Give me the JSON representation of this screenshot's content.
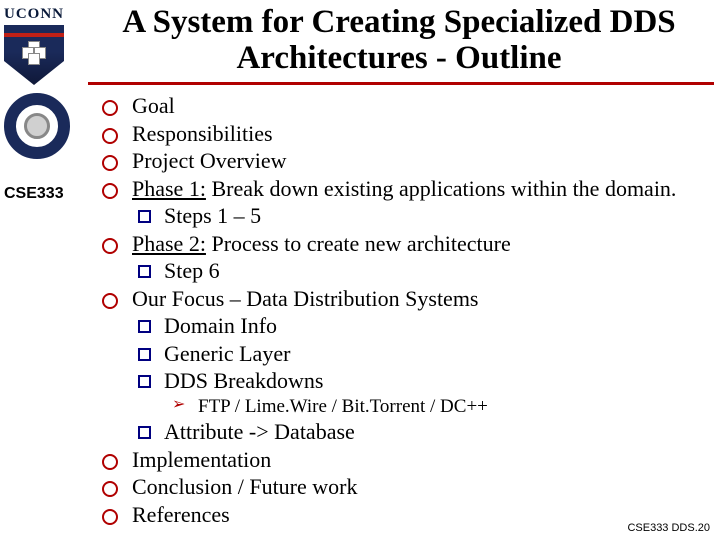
{
  "title": "A System for Creating Specialized DDS Architectures - Outline",
  "course": "CSE333",
  "uconn_text": "UCONN",
  "colors": {
    "rule": "#b00000",
    "circle_bullet": "#b00000",
    "square_bullet": "#000080",
    "arrow_bullet": "#b00000",
    "background": "#ffffff",
    "text": "#000000",
    "uconn_blue": "#1a2a5a",
    "uconn_red": "#c02016"
  },
  "typography": {
    "title_font": "Times New Roman",
    "title_size_pt": 30,
    "body_font": "Times New Roman",
    "body_size_pt": 20,
    "sub_size_pt": 18,
    "course_font": "Arial",
    "course_size_pt": 13,
    "footer_font": "Arial",
    "footer_size_pt": 9
  },
  "bullets": [
    {
      "text": "Goal"
    },
    {
      "text": "Responsibilities"
    },
    {
      "text": "Project Overview"
    },
    {
      "lead": "Phase 1:",
      "rest": " Break down existing applications within the domain.",
      "sub": [
        {
          "text": "Steps 1 – 5"
        }
      ]
    },
    {
      "lead": "Phase 2:",
      "rest": " Process to create new architecture",
      "sub": [
        {
          "text": "Step 6"
        }
      ]
    },
    {
      "text": "Our Focus – Data Distribution Systems",
      "sub": [
        {
          "text": "Domain Info"
        },
        {
          "text": "Generic Layer"
        },
        {
          "text": "DDS Breakdowns",
          "sub": [
            {
              "text": "FTP / Lime.Wire / Bit.Torrent / DC++"
            }
          ]
        },
        {
          "text": "Attribute -> Database"
        }
      ]
    },
    {
      "text": "Implementation"
    },
    {
      "text": "Conclusion / Future work"
    },
    {
      "text": "References"
    }
  ],
  "footer": "CSE333 DDS.20"
}
